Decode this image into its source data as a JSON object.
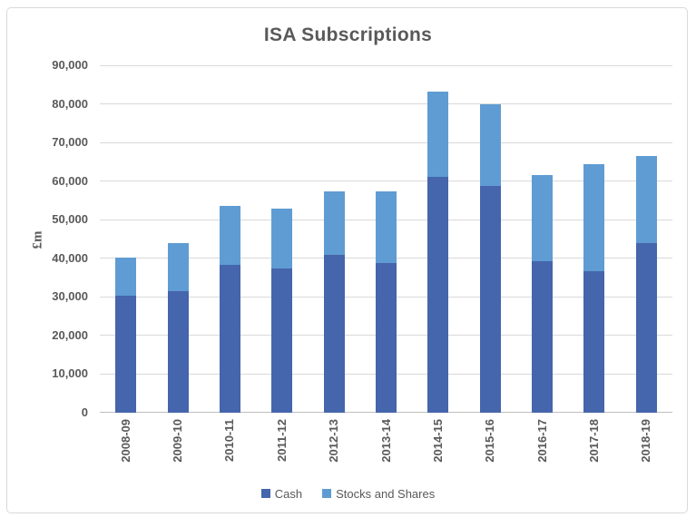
{
  "title": "ISA Subscriptions",
  "colors": {
    "cash": "#4565AC",
    "stocks_and_shares": "#5F9CD3",
    "text": "#595959",
    "gridline": "#D9D9D9",
    "axis_line": "#BFBFBF",
    "border": "#D9D9D9",
    "background": "#FFFFFF"
  },
  "legend": {
    "items": [
      {
        "label": "Cash",
        "color": "#4565AC"
      },
      {
        "label": "Stocks and Shares",
        "color": "#5F9CD3"
      }
    ]
  },
  "chart_data": {
    "type": "bar",
    "stacked": true,
    "title": "ISA Subscriptions",
    "xlabel": "",
    "ylabel": "£m",
    "categories": [
      "2008-09",
      "2009-10",
      "2010-11",
      "2011-12",
      "2012-13",
      "2013-14",
      "2014-15",
      "2015-16",
      "2016-17",
      "2017-18",
      "2018-19"
    ],
    "series": [
      {
        "name": "Cash",
        "color": "#4565AC",
        "values": [
          30400,
          31600,
          38200,
          37300,
          40900,
          38800,
          61000,
          58800,
          39200,
          36700,
          44000
        ]
      },
      {
        "name": "Stocks and Shares",
        "color": "#5F9CD3",
        "values": [
          9700,
          12300,
          15500,
          15500,
          16500,
          18500,
          22300,
          21200,
          22300,
          27700,
          22600
        ]
      }
    ],
    "totals": [
      40100,
      43900,
      53700,
      52800,
      57400,
      57300,
      83300,
      80000,
      61500,
      64400,
      66600
    ],
    "ylim": [
      0,
      90000
    ],
    "ytick_step": 10000,
    "ytick_values": [
      0,
      10000,
      20000,
      30000,
      40000,
      50000,
      60000,
      70000,
      80000,
      90000
    ],
    "ytick_labels": [
      "0",
      "10,000",
      "20,000",
      "30,000",
      "40,000",
      "50,000",
      "60,000",
      "70,000",
      "80,000",
      "90,000"
    ],
    "grid": true,
    "legend_position": "bottom"
  }
}
